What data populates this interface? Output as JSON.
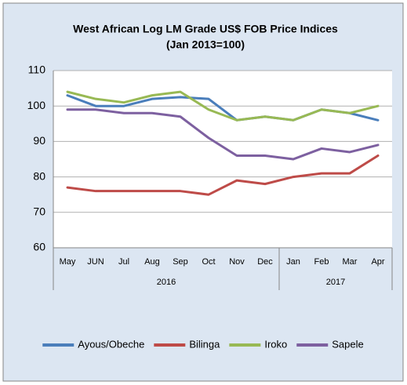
{
  "chart_data": {
    "type": "line",
    "title": "West African Log LM Grade US$ FOB Price Indices",
    "subtitle": "(Jan 2013=100)",
    "groups": [
      {
        "name": "2016",
        "categories": [
          "May",
          "JUN",
          "Jul",
          "Aug",
          "Sep",
          "Oct",
          "Nov",
          "Dec"
        ]
      },
      {
        "name": "2017",
        "categories": [
          "Jan",
          "Feb",
          "Mar",
          "Apr"
        ]
      }
    ],
    "series": [
      {
        "name": "Ayous/Obeche",
        "color": "#4a7ebb",
        "values": [
          103,
          100,
          100,
          102,
          102.5,
          102,
          96,
          97,
          96,
          99,
          98,
          96
        ]
      },
      {
        "name": "Bilinga",
        "color": "#be4b48",
        "values": [
          77,
          76,
          76,
          76,
          76,
          75,
          79,
          78,
          80,
          81,
          81,
          86
        ]
      },
      {
        "name": "Iroko",
        "color": "#98b954",
        "values": [
          104,
          102,
          101,
          103,
          104,
          99,
          96,
          97,
          96,
          99,
          98,
          100
        ]
      },
      {
        "name": "Sapele",
        "color": "#7d60a0",
        "values": [
          99,
          99,
          98,
          98,
          97,
          91,
          86,
          86,
          85,
          88,
          87,
          89
        ]
      }
    ],
    "ylim": [
      60,
      110
    ],
    "yticks": [
      60,
      70,
      80,
      90,
      100,
      110
    ],
    "grid": true,
    "legend": "bottom"
  }
}
